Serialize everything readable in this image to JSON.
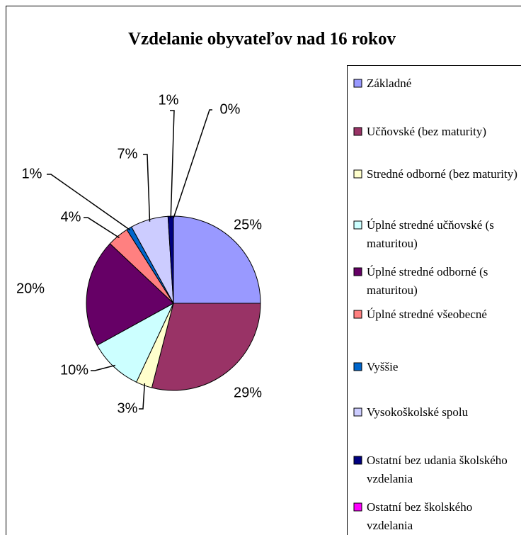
{
  "chart_data": {
    "type": "pie",
    "title": "Vzdelanie obyvateľov nad 16 rokov",
    "categories": [
      "Základné",
      "Učňovské (bez maturity)",
      "Stredné odborné (bez maturity)",
      "Úplné stredné učňovské (s maturitou)",
      "Úplné stredné odborné (s maturitou)",
      "Úplné stredné všeobecné",
      "Vyššie",
      "Vysokoškolské spolu",
      "Ostatní bez udania školského vzdelania",
      "Ostatní bez školského vzdelania"
    ],
    "values": [
      25,
      29,
      3,
      10,
      20,
      4,
      1,
      7,
      1,
      0
    ],
    "value_labels": [
      "25%",
      "29%",
      "3%",
      "10%",
      "20%",
      "4%",
      "1%",
      "7%",
      "1%",
      "0%"
    ],
    "colors": [
      "#9999ff",
      "#993366",
      "#ffffcc",
      "#ccffff",
      "#660066",
      "#ff8080",
      "#0066cc",
      "#ccccff",
      "#000080",
      "#ff00ff"
    ],
    "legend": "right"
  }
}
